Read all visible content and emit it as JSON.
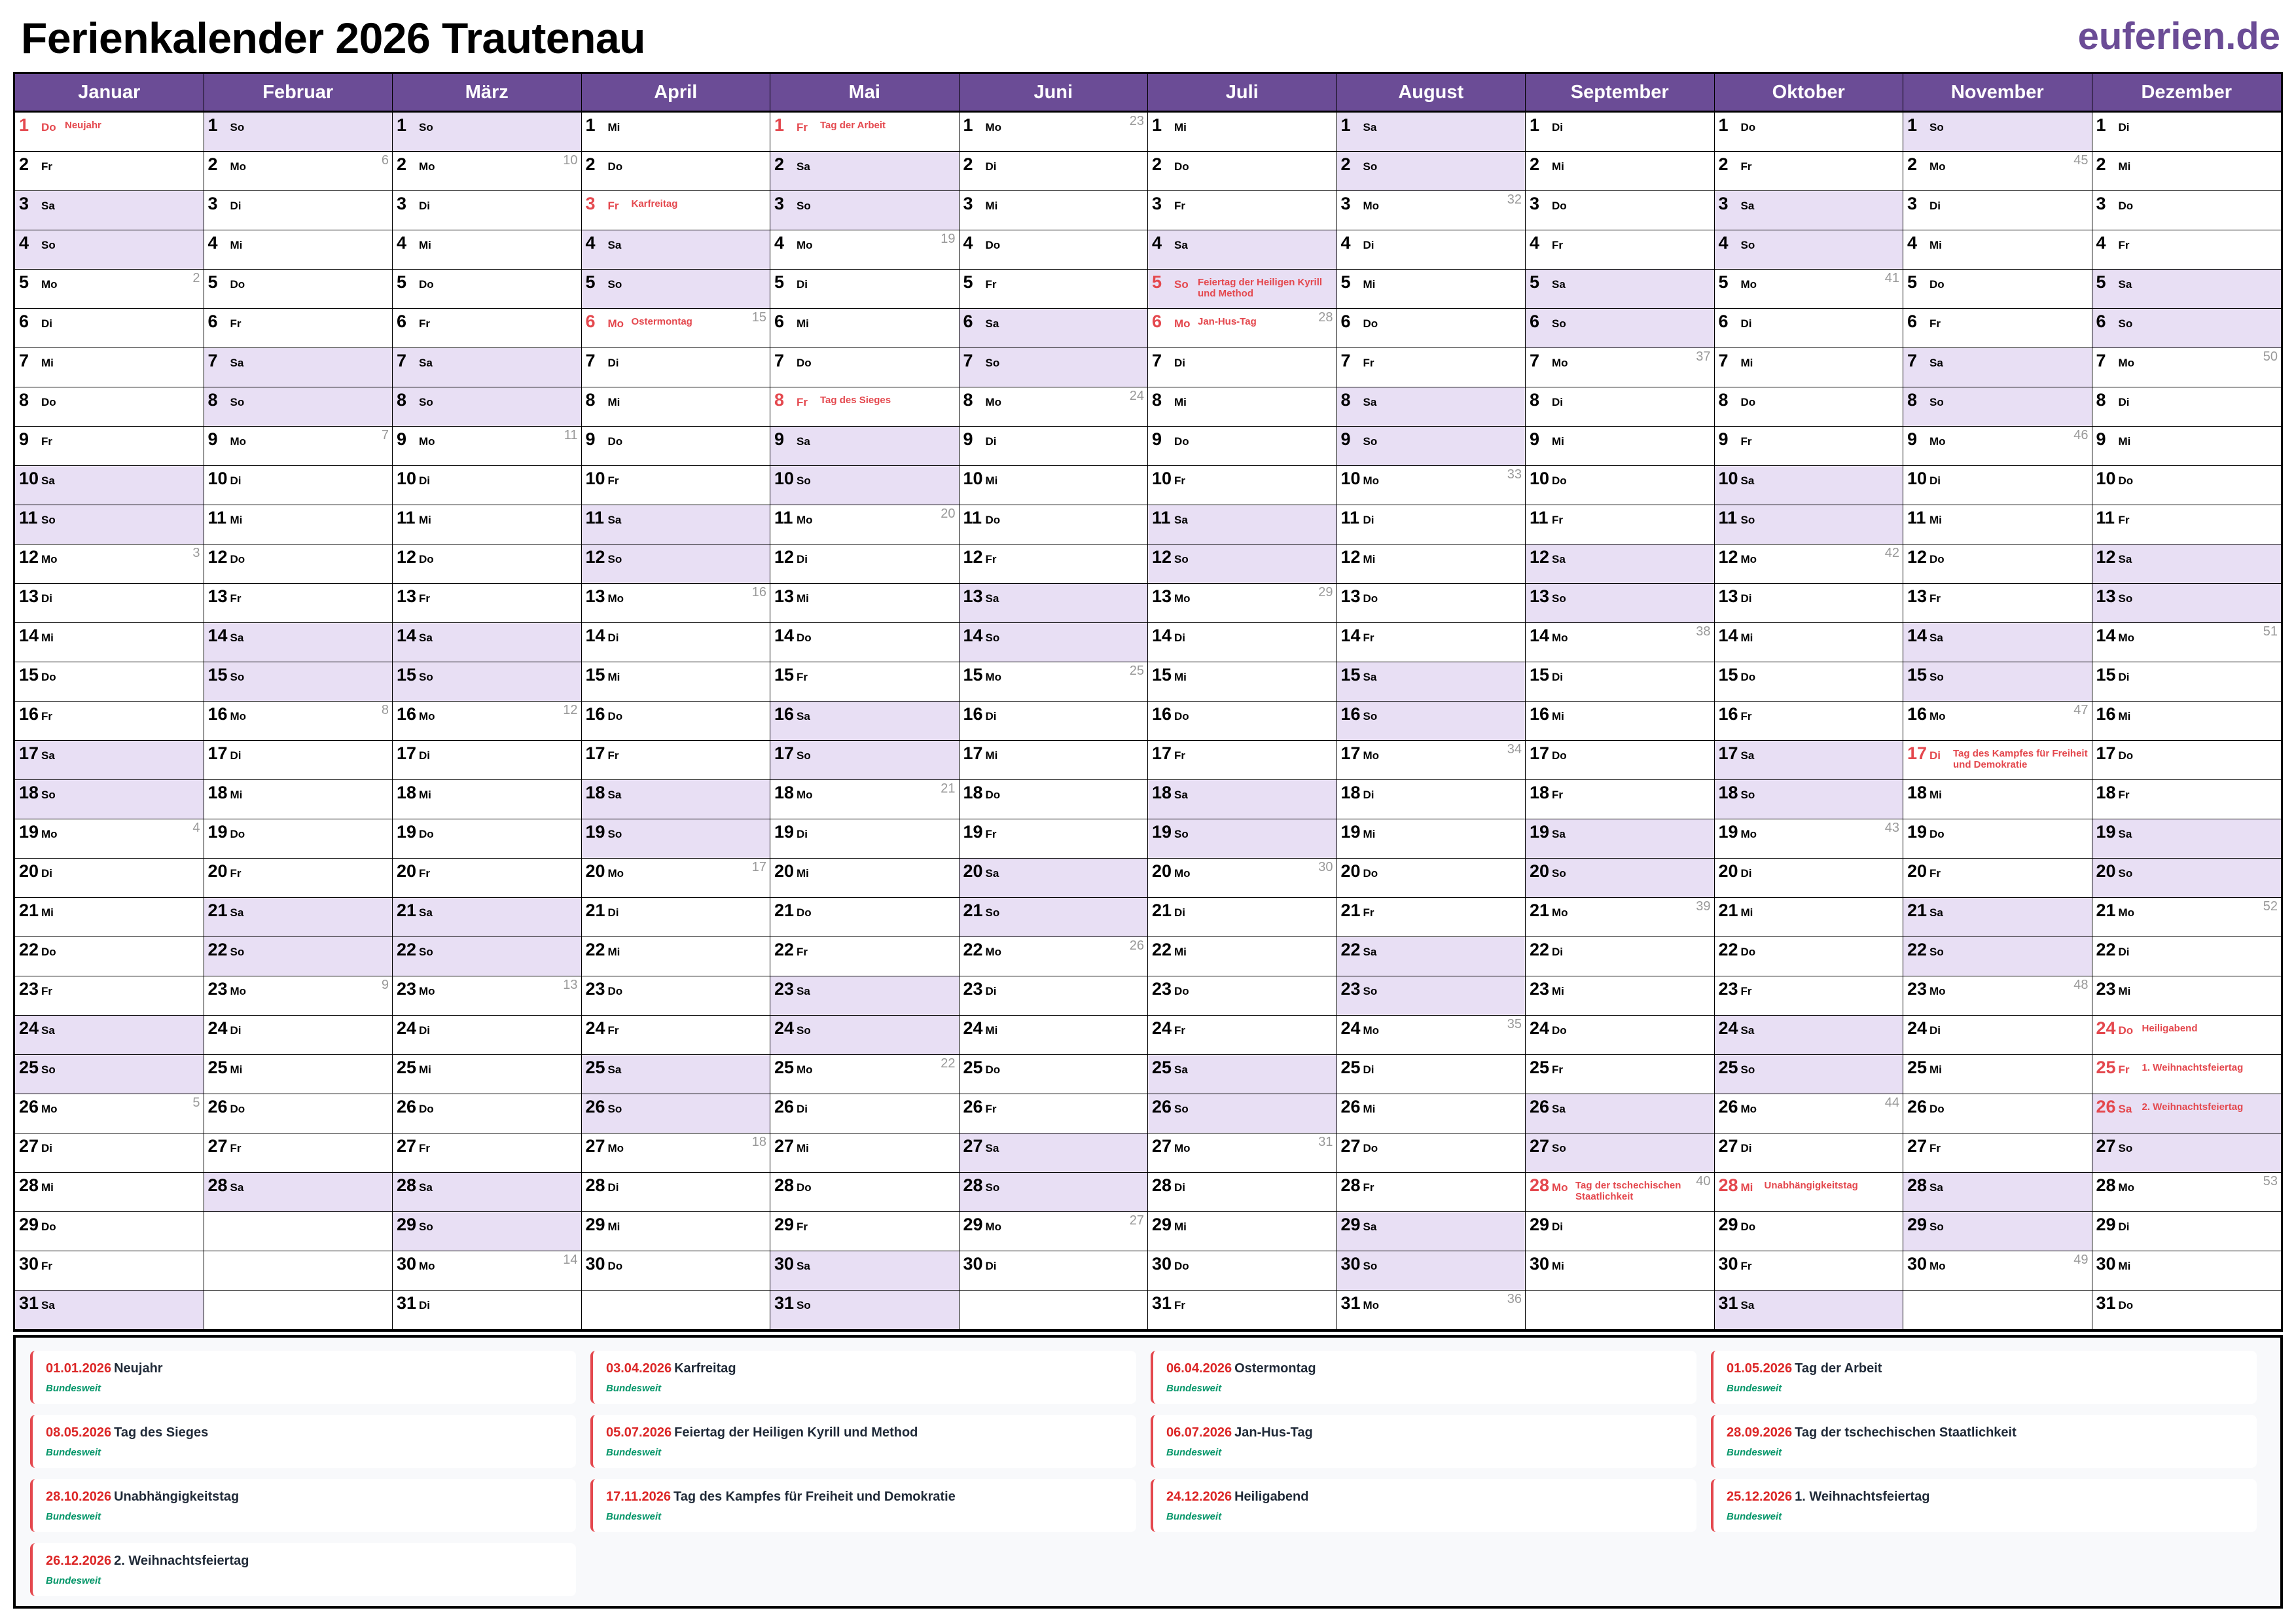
{
  "title": "Ferienkalender 2026 Trautenau",
  "logo": "euferien.de",
  "colors": {
    "header": "#6b4c96",
    "weekend": "#e8dff4",
    "holiday": "#e4484e",
    "region": "#059669"
  },
  "weekend_days": [
    "Sa",
    "So"
  ],
  "months": [
    {
      "name": "Januar",
      "weekdays": "Do Fr Sa So Mo Di Mi Do Fr Sa So Mo Di Mi Do Fr Sa So Mo Di Mi Do Fr Sa So Mo Di Mi Do Fr Sa",
      "weeks": [
        "2",
        "3",
        "4",
        "5"
      ],
      "holidays": {
        "1": "Neujahr"
      }
    },
    {
      "name": "Februar",
      "weekdays": "So Mo Di Mi Do Fr Sa So Mo Di Mi Do Fr Sa So Mo Di Mi Do Fr Sa So Mo Di Mi Do Fr Sa",
      "weeks": [
        "6",
        "7",
        "8",
        "9"
      ],
      "holidays": {}
    },
    {
      "name": "März",
      "weekdays": "So Mo Di Mi Do Fr Sa So Mo Di Mi Do Fr Sa So Mo Di Mi Do Fr Sa So Mo Di Mi Do Fr Sa So Mo Di",
      "weeks": [
        "10",
        "11",
        "12",
        "13",
        "14"
      ],
      "holidays": {}
    },
    {
      "name": "April",
      "weekdays": "Mi Do Fr Sa So Mo Di Mi Do Fr Sa So Mo Di Mi Do Fr Sa So Mo Di Mi Do Fr Sa So Mo Di Mi Do",
      "weeks": [
        "15",
        "16",
        "17",
        "18"
      ],
      "holidays": {
        "3": "Karfreitag",
        "6": "Ostermontag"
      }
    },
    {
      "name": "Mai",
      "weekdays": "Fr Sa So Mo Di Mi Do Fr Sa So Mo Di Mi Do Fr Sa So Mo Di Mi Do Fr Sa So Mo Di Mi Do Fr Sa So",
      "weeks": [
        "19",
        "20",
        "21",
        "22"
      ],
      "holidays": {
        "1": "Tag der Arbeit",
        "8": "Tag des Sieges"
      }
    },
    {
      "name": "Juni",
      "weekdays": "Mo Di Mi Do Fr Sa So Mo Di Mi Do Fr Sa So Mo Di Mi Do Fr Sa So Mo Di Mi Do Fr Sa So Mo Di",
      "weeks": [
        "23",
        "24",
        "25",
        "26",
        "27"
      ],
      "holidays": {}
    },
    {
      "name": "Juli",
      "weekdays": "Mi Do Fr Sa So Mo Di Mi Do Fr Sa So Mo Di Mi Do Fr Sa So Mo Di Mi Do Fr Sa So Mo Di Mi Do Fr",
      "weeks": [
        "28",
        "29",
        "30",
        "31"
      ],
      "holidays": {
        "5": "Feiertag der Heiligen Kyrill und Method",
        "6": "Jan-Hus-Tag"
      }
    },
    {
      "name": "August",
      "weekdays": "Sa So Mo Di Mi Do Fr Sa So Mo Di Mi Do Fr Sa So Mo Di Mi Do Fr Sa So Mo Di Mi Do Fr Sa So Mo",
      "weeks": [
        "32",
        "33",
        "34",
        "35",
        "36"
      ],
      "holidays": {}
    },
    {
      "name": "September",
      "weekdays": "Di Mi Do Fr Sa So Mo Di Mi Do Fr Sa So Mo Di Mi Do Fr Sa So Mo Di Mi Do Fr Sa So Mo Di Mi",
      "weeks": [
        "37",
        "38",
        "39",
        "40"
      ],
      "holidays": {
        "28": "Tag der tschechischen Staatlichkeit"
      }
    },
    {
      "name": "Oktober",
      "weekdays": "Do Fr Sa So Mo Di Mi Do Fr Sa So Mo Di Mi Do Fr Sa So Mo Di Mi Do Fr Sa So Mo Di Mi Do Fr Sa",
      "weeks": [
        "41",
        "42",
        "43",
        "44"
      ],
      "holidays": {
        "28": "Unabhängigkeitstag"
      }
    },
    {
      "name": "November",
      "weekdays": "So Mo Di Mi Do Fr Sa So Mo Di Mi Do Fr Sa So Mo Di Mi Do Fr Sa So Mo Di Mi Do Fr Sa So Mo",
      "weeks": [
        "45",
        "46",
        "47",
        "48",
        "49"
      ],
      "holidays": {
        "17": "Tag des Kampfes für Freiheit und Demokratie"
      }
    },
    {
      "name": "Dezember",
      "weekdays": "Di Mi Do Fr Sa So Mo Di Mi Do Fr Sa So Mo Di Mi Do Fr Sa So Mo Di Mi Do Fr Sa So Mo Di Mi Do",
      "weeks": [
        "50",
        "51",
        "52",
        "53"
      ],
      "holidays": {
        "24": "Heiligabend",
        "25": "1. Weihnachtsfeiertag",
        "26": "2. Weihnachtsfeiertag"
      }
    }
  ],
  "legend": [
    {
      "date": "01.01.2026",
      "name": "Neujahr",
      "region": "Bundesweit"
    },
    {
      "date": "03.04.2026",
      "name": "Karfreitag",
      "region": "Bundesweit"
    },
    {
      "date": "06.04.2026",
      "name": "Ostermontag",
      "region": "Bundesweit"
    },
    {
      "date": "01.05.2026",
      "name": "Tag der Arbeit",
      "region": "Bundesweit"
    },
    {
      "date": "08.05.2026",
      "name": "Tag des Sieges",
      "region": "Bundesweit"
    },
    {
      "date": "05.07.2026",
      "name": "Feiertag der Heiligen Kyrill und Method",
      "region": "Bundesweit"
    },
    {
      "date": "06.07.2026",
      "name": "Jan-Hus-Tag",
      "region": "Bundesweit"
    },
    {
      "date": "28.09.2026",
      "name": "Tag der tschechischen Staatlichkeit",
      "region": "Bundesweit"
    },
    {
      "date": "28.10.2026",
      "name": "Unabhängigkeitstag",
      "region": "Bundesweit"
    },
    {
      "date": "17.11.2026",
      "name": "Tag des Kampfes für Freiheit und Demokratie",
      "region": "Bundesweit"
    },
    {
      "date": "24.12.2026",
      "name": "Heiligabend",
      "region": "Bundesweit"
    },
    {
      "date": "25.12.2026",
      "name": "1. Weihnachtsfeiertag",
      "region": "Bundesweit"
    },
    {
      "date": "26.12.2026",
      "name": "2. Weihnachtsfeiertag",
      "region": "Bundesweit"
    }
  ]
}
